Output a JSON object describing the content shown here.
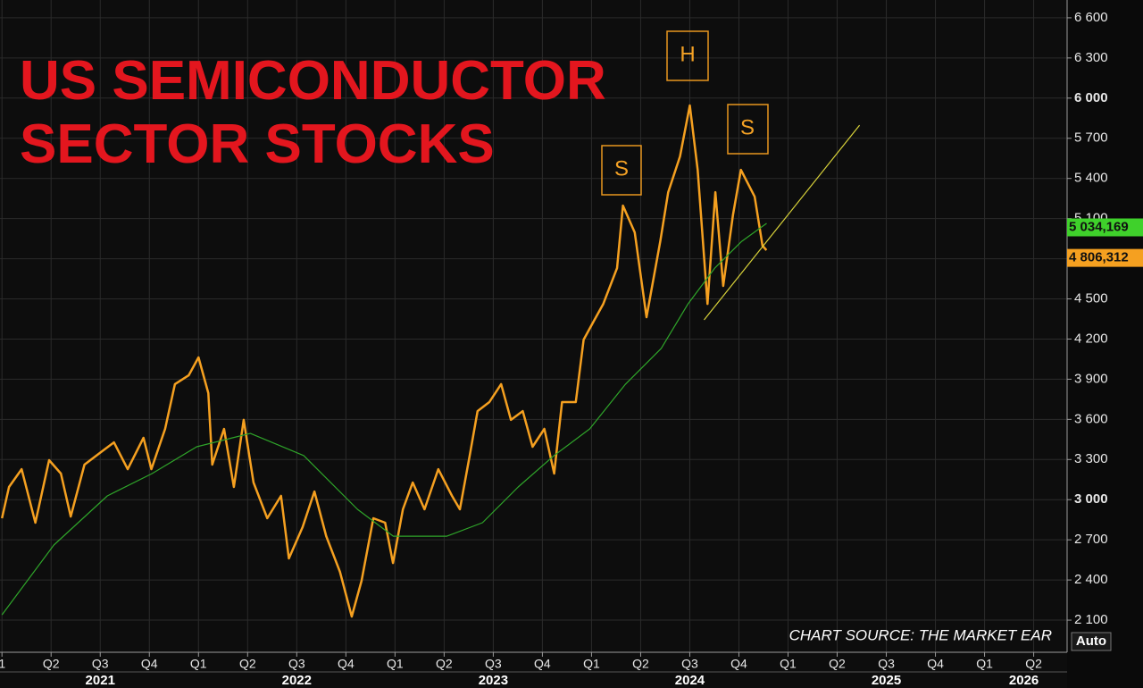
{
  "chart_data": {
    "type": "line",
    "title_lines": [
      "US SEMICONDUCTOR",
      "SECTOR STOCKS"
    ],
    "annotations": [
      "S",
      "H",
      "S"
    ],
    "source": "CHART SOURCE: THE MARKET EAR",
    "scale_button": "Auto",
    "xlim": [
      2020.99,
      2026.42
    ],
    "ylim": [
      1860,
      6733
    ],
    "grid": true,
    "xticks": [
      {
        "value": 2021.0,
        "label": "1"
      },
      {
        "value": 2021.25,
        "label": "Q2"
      },
      {
        "value": 2021.5,
        "label": "Q3"
      },
      {
        "value": 2021.75,
        "label": "Q4"
      },
      {
        "value": 2022.0,
        "label": "Q1"
      },
      {
        "value": 2022.25,
        "label": "Q2"
      },
      {
        "value": 2022.5,
        "label": "Q3"
      },
      {
        "value": 2022.75,
        "label": "Q4"
      },
      {
        "value": 2023.0,
        "label": "Q1"
      },
      {
        "value": 2023.25,
        "label": "Q2"
      },
      {
        "value": 2023.5,
        "label": "Q3"
      },
      {
        "value": 2023.75,
        "label": "Q4"
      },
      {
        "value": 2024.0,
        "label": "Q1"
      },
      {
        "value": 2024.25,
        "label": "Q2"
      },
      {
        "value": 2024.5,
        "label": "Q3"
      },
      {
        "value": 2024.75,
        "label": "Q4"
      },
      {
        "value": 2025.0,
        "label": "Q1"
      },
      {
        "value": 2025.25,
        "label": "Q2"
      },
      {
        "value": 2025.5,
        "label": "Q3"
      },
      {
        "value": 2025.75,
        "label": "Q4"
      },
      {
        "value": 2026.0,
        "label": "Q1"
      },
      {
        "value": 2026.25,
        "label": "Q2"
      }
    ],
    "year_ticks": [
      {
        "value": 2021.5,
        "label": "2021"
      },
      {
        "value": 2022.5,
        "label": "2022"
      },
      {
        "value": 2023.5,
        "label": "2023"
      },
      {
        "value": 2024.5,
        "label": "2024"
      },
      {
        "value": 2025.5,
        "label": "2025"
      },
      {
        "value": 2026.2,
        "label": "2026"
      }
    ],
    "yticks": [
      {
        "value": 2100,
        "label": "2 100"
      },
      {
        "value": 2400,
        "label": "2 400"
      },
      {
        "value": 2700,
        "label": "2 700"
      },
      {
        "value": 3000,
        "label": "3 000"
      },
      {
        "value": 3300,
        "label": "3 300"
      },
      {
        "value": 3600,
        "label": "3 600"
      },
      {
        "value": 3900,
        "label": "3 900"
      },
      {
        "value": 4200,
        "label": "4 200"
      },
      {
        "value": 4500,
        "label": "4 500"
      },
      {
        "value": 4800,
        "label": "4 800"
      },
      {
        "value": 5100,
        "label": "5 100"
      },
      {
        "value": 5400,
        "label": "5 400"
      },
      {
        "value": 5700,
        "label": "5 700"
      },
      {
        "value": 6000,
        "label": "6 000"
      },
      {
        "value": 6300,
        "label": "6 300"
      },
      {
        "value": 6600,
        "label": "6 600"
      }
    ],
    "bold_yticks": [
      3000,
      6000
    ],
    "series": [
      {
        "color": "#f5a020",
        "x": [
          2021.0,
          2021.036,
          2021.1,
          2021.17,
          2021.24,
          2021.3,
          2021.35,
          2021.42,
          2021.51,
          2021.57,
          2021.64,
          2021.72,
          2021.76,
          2021.83,
          2021.88,
          2021.95,
          2022.0,
          2022.05,
          2022.07,
          2022.13,
          2022.18,
          2022.23,
          2022.28,
          2022.35,
          2022.42,
          2022.46,
          2022.53,
          2022.59,
          2022.65,
          2022.72,
          2022.78,
          2022.83,
          2022.89,
          2022.95,
          2022.99,
          2023.04,
          2023.09,
          2023.15,
          2023.22,
          2023.29,
          2023.33,
          2023.38,
          2023.42,
          2023.48,
          2023.54,
          2023.59,
          2023.65,
          2023.7,
          2023.76,
          2023.81,
          2023.85,
          2023.92,
          2023.96,
          2024.01,
          2024.06,
          2024.13,
          2024.16,
          2024.22,
          2024.28,
          2024.35,
          2024.39,
          2024.45,
          2024.5,
          2024.54,
          2024.59,
          2024.63,
          2024.67,
          2024.72,
          2024.76,
          2024.83,
          2024.87,
          2024.89
        ],
        "values": [
          2861,
          3095,
          3228,
          2828,
          3295,
          3195,
          2874,
          3262,
          3362,
          3428,
          3228,
          3462,
          3228,
          3529,
          3863,
          3929,
          4063,
          3796,
          3262,
          3529,
          3095,
          3596,
          3128,
          2861,
          3028,
          2561,
          2795,
          3061,
          2728,
          2461,
          2127,
          2394,
          2861,
          2828,
          2527,
          2928,
          3128,
          2928,
          3228,
          3028,
          2928,
          3329,
          3662,
          3729,
          3863,
          3596,
          3662,
          3395,
          3529,
          3195,
          3729,
          3729,
          4196,
          4330,
          4463,
          4730,
          5197,
          4997,
          4363,
          4930,
          5297,
          5564,
          5945,
          5464,
          4463,
          5297,
          4597,
          5130,
          5464,
          5264,
          4897,
          4864
        ]
      },
      {
        "color": "#2fa52a",
        "x": [
          2021.0,
          2021.264,
          2021.536,
          2021.764,
          2021.991,
          2022.173,
          2022.264,
          2022.536,
          2022.809,
          2022.991,
          2023.264,
          2023.445,
          2023.627,
          2023.809,
          2023.991,
          2024.173,
          2024.355,
          2024.491,
          2024.627,
          2024.764,
          2024.891
        ],
        "values": [
          2140,
          2661,
          3028,
          3195,
          3395,
          3462,
          3495,
          3329,
          2928,
          2727,
          2727,
          2828,
          3095,
          3329,
          3529,
          3863,
          4130,
          4463,
          4730,
          4930,
          5064
        ]
      },
      {
        "color": "#d8d23a",
        "x": [
          2024.573,
          2025.364
        ],
        "values": [
          4343,
          5798
        ]
      }
    ],
    "last_value_labels": [
      {
        "value": 5034.169,
        "label": "5 034,169",
        "color": "#3fd12b"
      },
      {
        "value": 4806.312,
        "label": "4 806,312",
        "color": "#f5a020"
      }
    ]
  }
}
